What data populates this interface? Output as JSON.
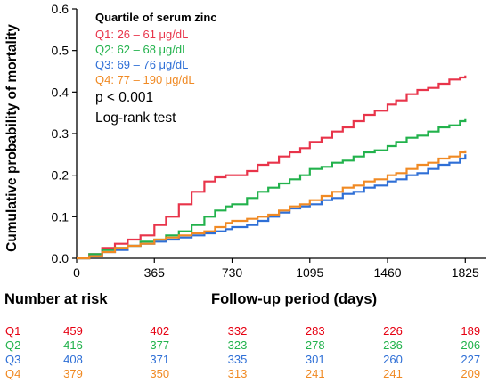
{
  "chart_data": {
    "type": "line",
    "step": true,
    "ylabel": "Cumulative probability of mortality",
    "xlabel": "Follow-up period (days)",
    "xlim": [
      0,
      1920
    ],
    "ylim": [
      0,
      0.6
    ],
    "xticks": [
      0,
      365,
      730,
      1095,
      1460,
      1825
    ],
    "yticks": [
      0.0,
      0.1,
      0.2,
      0.3,
      0.4,
      0.5,
      0.6
    ],
    "grid": false,
    "legend": {
      "placement": "top-left",
      "title": "Quartile of serum zinc"
    },
    "series": [
      {
        "name": "Q1: 26 – 61 μg/dL",
        "color": "#e8344a",
        "x": [
          0,
          60,
          120,
          180,
          240,
          300,
          365,
          420,
          480,
          540,
          600,
          650,
          700,
          730,
          800,
          850,
          900,
          950,
          1000,
          1050,
          1095,
          1150,
          1200,
          1250,
          1300,
          1350,
          1400,
          1460,
          1500,
          1550,
          1600,
          1650,
          1700,
          1750,
          1800,
          1825
        ],
        "y": [
          0.0,
          0.01,
          0.025,
          0.035,
          0.045,
          0.055,
          0.08,
          0.1,
          0.13,
          0.16,
          0.185,
          0.195,
          0.2,
          0.2,
          0.21,
          0.225,
          0.23,
          0.245,
          0.255,
          0.265,
          0.28,
          0.29,
          0.305,
          0.315,
          0.33,
          0.345,
          0.355,
          0.37,
          0.38,
          0.395,
          0.405,
          0.41,
          0.42,
          0.43,
          0.435,
          0.44
        ]
      },
      {
        "name": "Q2: 62 – 68 μg/dL",
        "color": "#22b24c",
        "x": [
          0,
          60,
          120,
          180,
          240,
          300,
          365,
          420,
          480,
          540,
          600,
          650,
          700,
          730,
          800,
          850,
          900,
          950,
          1000,
          1050,
          1095,
          1150,
          1200,
          1250,
          1300,
          1350,
          1400,
          1460,
          1500,
          1550,
          1600,
          1650,
          1700,
          1750,
          1800,
          1825
        ],
        "y": [
          0.0,
          0.01,
          0.02,
          0.025,
          0.03,
          0.04,
          0.045,
          0.055,
          0.065,
          0.08,
          0.1,
          0.115,
          0.125,
          0.13,
          0.145,
          0.16,
          0.17,
          0.18,
          0.19,
          0.2,
          0.215,
          0.22,
          0.23,
          0.235,
          0.245,
          0.255,
          0.26,
          0.27,
          0.28,
          0.29,
          0.295,
          0.305,
          0.315,
          0.32,
          0.33,
          0.335
        ]
      },
      {
        "name": "Q3: 69 – 76 μg/dL",
        "color": "#2e6fd6",
        "x": [
          0,
          60,
          120,
          180,
          240,
          300,
          365,
          420,
          480,
          540,
          600,
          650,
          700,
          730,
          800,
          850,
          900,
          950,
          1000,
          1050,
          1095,
          1150,
          1200,
          1250,
          1300,
          1350,
          1400,
          1460,
          1500,
          1550,
          1600,
          1650,
          1700,
          1750,
          1800,
          1825
        ],
        "y": [
          0.0,
          0.005,
          0.015,
          0.02,
          0.03,
          0.035,
          0.04,
          0.045,
          0.05,
          0.055,
          0.06,
          0.065,
          0.07,
          0.075,
          0.08,
          0.09,
          0.1,
          0.11,
          0.12,
          0.125,
          0.13,
          0.14,
          0.145,
          0.155,
          0.16,
          0.17,
          0.175,
          0.185,
          0.19,
          0.2,
          0.205,
          0.215,
          0.225,
          0.23,
          0.24,
          0.25
        ]
      },
      {
        "name": "Q4: 77 – 190 μg/dL",
        "color": "#f08a24",
        "x": [
          0,
          60,
          120,
          180,
          240,
          300,
          365,
          420,
          480,
          540,
          600,
          650,
          700,
          730,
          800,
          850,
          900,
          950,
          1000,
          1050,
          1095,
          1150,
          1200,
          1250,
          1300,
          1350,
          1400,
          1460,
          1500,
          1550,
          1600,
          1650,
          1700,
          1750,
          1800,
          1825
        ],
        "y": [
          0.0,
          0.005,
          0.015,
          0.025,
          0.03,
          0.035,
          0.045,
          0.05,
          0.055,
          0.06,
          0.065,
          0.075,
          0.085,
          0.09,
          0.095,
          0.1,
          0.105,
          0.115,
          0.125,
          0.13,
          0.14,
          0.15,
          0.16,
          0.17,
          0.175,
          0.185,
          0.19,
          0.2,
          0.205,
          0.215,
          0.225,
          0.23,
          0.24,
          0.245,
          0.255,
          0.26
        ]
      }
    ],
    "annotations": [
      "p < 0.001",
      "Log-rank test"
    ]
  },
  "risk_table": {
    "title": "Number at risk",
    "rows": [
      {
        "label": "Q1",
        "color": "#e60012",
        "values": [
          "459",
          "402",
          "332",
          "283",
          "226",
          "189"
        ]
      },
      {
        "label": "Q2",
        "color": "#22b24c",
        "values": [
          "416",
          "377",
          "323",
          "278",
          "236",
          "206"
        ]
      },
      {
        "label": "Q3",
        "color": "#2e6fd6",
        "values": [
          "408",
          "371",
          "335",
          "301",
          "260",
          "227"
        ]
      },
      {
        "label": "Q4",
        "color": "#f08a24",
        "values": [
          "379",
          "350",
          "313",
          "241",
          "241",
          "209"
        ]
      }
    ]
  }
}
